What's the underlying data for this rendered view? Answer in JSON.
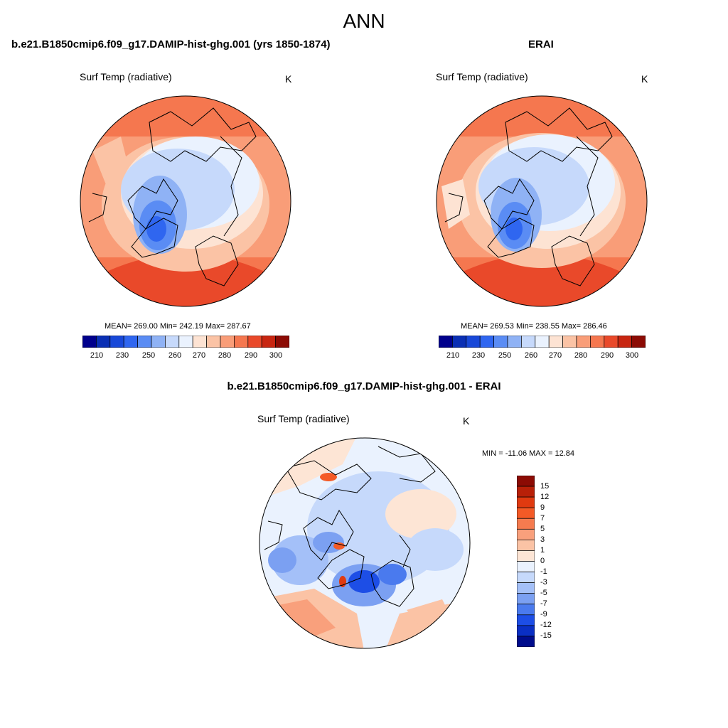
{
  "figure": {
    "title": "ANN"
  },
  "panels": {
    "model": {
      "title": "b.e21.B1850cmip6.f09_g17.DAMIP-hist-ghg.001 (yrs 1850-1874)",
      "variable": "Surf Temp (radiative)",
      "units": "K",
      "stats": "MEAN= 269.00  Min= 242.19  Max= 287.67"
    },
    "obs": {
      "title": "ERAI",
      "variable": "Surf Temp (radiative)",
      "units": "K",
      "stats": "MEAN= 269.53  Min= 238.55  Max= 286.46"
    },
    "diff": {
      "title": "b.e21.B1850cmip6.f09_g17.DAMIP-hist-ghg.001 - ERAI",
      "variable": "Surf Temp (radiative)",
      "units": "K",
      "stats": "MIN = -11.06 MAX =  12.84"
    }
  },
  "colorbars": {
    "absolute": {
      "tick_labels": [
        "210",
        "230",
        "250",
        "260",
        "270",
        "280",
        "290",
        "300"
      ],
      "colors": [
        "#00008c",
        "#0a2fb4",
        "#1848d8",
        "#2f66f0",
        "#5a8cf4",
        "#8fb2f5",
        "#c6d9fb",
        "#eaf2fe",
        "#fde3d3",
        "#fbc3a5",
        "#f99d78",
        "#f5774f",
        "#e9492a",
        "#c82611",
        "#8c0b04"
      ]
    },
    "difference": {
      "tick_labels": [
        "15",
        "12",
        "9",
        "7",
        "5",
        "3",
        "1",
        "0",
        "-1",
        "-3",
        "-5",
        "-7",
        "-9",
        "-12",
        "-15"
      ],
      "colors": [
        "#8c0b04",
        "#b82008",
        "#e03a10",
        "#f45a26",
        "#f57b4f",
        "#f9a07c",
        "#fbc3a5",
        "#fde5d5",
        "#eaf2fe",
        "#c6d9fb",
        "#a4c0f8",
        "#7ba0f2",
        "#4a7aee",
        "#1d4ee6",
        "#0a2fc4",
        "#000c8c"
      ]
    }
  }
}
